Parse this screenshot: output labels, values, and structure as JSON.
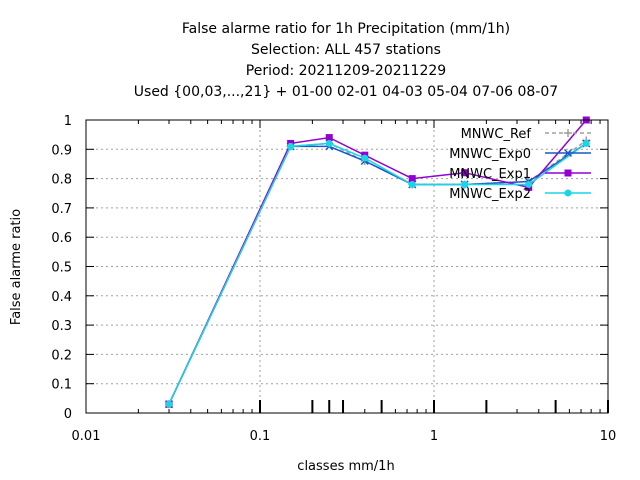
{
  "chart_data": {
    "type": "line",
    "title_lines": [
      "False alarme ratio  for 1h Precipitation (mm/1h)",
      "Selection: ALL    457 stations",
      "Period: 20211209-20211229",
      "Used {00,03,...,21} + 01-00 02-01 04-03 05-04 07-06 08-07"
    ],
    "xlabel": "classes mm/1h",
    "ylabel": "False alarme ratio",
    "xscale": "log",
    "xlim": [
      0.01,
      10
    ],
    "ylim": [
      0,
      1
    ],
    "x_ticks": [
      {
        "value": 0.01,
        "label": "0.01"
      },
      {
        "value": 0.1,
        "label": "0.1"
      },
      {
        "value": 1,
        "label": "1"
      },
      {
        "value": 10,
        "label": "10"
      }
    ],
    "y_ticks": [
      {
        "value": 0,
        "label": "0"
      },
      {
        "value": 0.1,
        "label": "0.1"
      },
      {
        "value": 0.2,
        "label": "0.2"
      },
      {
        "value": 0.3,
        "label": "0.3"
      },
      {
        "value": 0.4,
        "label": "0.4"
      },
      {
        "value": 0.5,
        "label": "0.5"
      },
      {
        "value": 0.6,
        "label": "0.6"
      },
      {
        "value": 0.7,
        "label": "0.7"
      },
      {
        "value": 0.8,
        "label": "0.8"
      },
      {
        "value": 0.9,
        "label": "0.9"
      },
      {
        "value": 1,
        "label": "1"
      }
    ],
    "class_markers": [
      0.1,
      0.2,
      0.25,
      0.3,
      0.5,
      1,
      2,
      5,
      10
    ],
    "grid": true,
    "legend_position": "top-right",
    "x": [
      0.03,
      0.15,
      0.25,
      0.4,
      0.75,
      1.5,
      3.5,
      7.5
    ],
    "series": [
      {
        "name": "MNWC_Ref",
        "color": "#a0a0a0",
        "dashed": true,
        "marker": "plus",
        "values": [
          0.03,
          0.91,
          0.92,
          0.86,
          0.78,
          0.78,
          0.79,
          0.93
        ]
      },
      {
        "name": "MNWC_Exp0",
        "color": "#1c56c8",
        "dashed": false,
        "marker": "cross",
        "values": [
          0.03,
          0.91,
          0.91,
          0.86,
          0.78,
          0.78,
          0.79,
          0.92
        ]
      },
      {
        "name": "MNWC_Exp1",
        "color": "#9400d3",
        "dashed": false,
        "marker": "square",
        "values": [
          0.03,
          0.92,
          0.94,
          0.88,
          0.8,
          0.82,
          0.77,
          1.0
        ]
      },
      {
        "name": "MNWC_Exp2",
        "color": "#17d7e3",
        "dashed": false,
        "marker": "circle",
        "values": [
          0.03,
          0.91,
          0.92,
          0.87,
          0.78,
          0.78,
          0.78,
          0.92
        ]
      }
    ]
  }
}
